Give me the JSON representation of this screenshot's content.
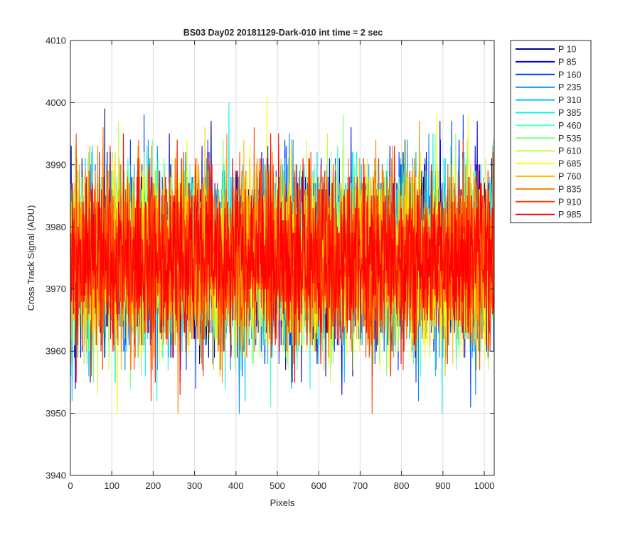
{
  "chart_data": {
    "type": "line",
    "title": "BS03 Day02 20181129-Dark-010 int time = 2 sec",
    "xlabel": "Pixels",
    "ylabel": "Cross Track Signal (ADU)",
    "xlim": [
      0,
      1024
    ],
    "ylim": [
      3940,
      4010
    ],
    "xticks": [
      0,
      100,
      200,
      300,
      400,
      500,
      600,
      700,
      800,
      900,
      1000
    ],
    "yticks": [
      3940,
      3950,
      3960,
      3970,
      3980,
      3990,
      4000,
      4010
    ],
    "grid": true,
    "legend_position": "outside-top-right",
    "noise_model": {
      "mean": 3975,
      "std": 7,
      "min": 3943,
      "max": 4006
    },
    "series": [
      {
        "name": "P 10",
        "color": "#00008f"
      },
      {
        "name": "P 85",
        "color": "#0000e6"
      },
      {
        "name": "P 160",
        "color": "#0040ff"
      },
      {
        "name": "P 235",
        "color": "#0090ff"
      },
      {
        "name": "P 310",
        "color": "#00c8ff"
      },
      {
        "name": "P 385",
        "color": "#10f0f0"
      },
      {
        "name": "P 460",
        "color": "#50ffc0"
      },
      {
        "name": "P 535",
        "color": "#80ff80"
      },
      {
        "name": "P 610",
        "color": "#c0ff40"
      },
      {
        "name": "P 685",
        "color": "#ffff00"
      },
      {
        "name": "P 760",
        "color": "#ffc000"
      },
      {
        "name": "P 835",
        "color": "#ff8000"
      },
      {
        "name": "P 910",
        "color": "#ff4000"
      },
      {
        "name": "P 985",
        "color": "#ff0000"
      }
    ]
  }
}
